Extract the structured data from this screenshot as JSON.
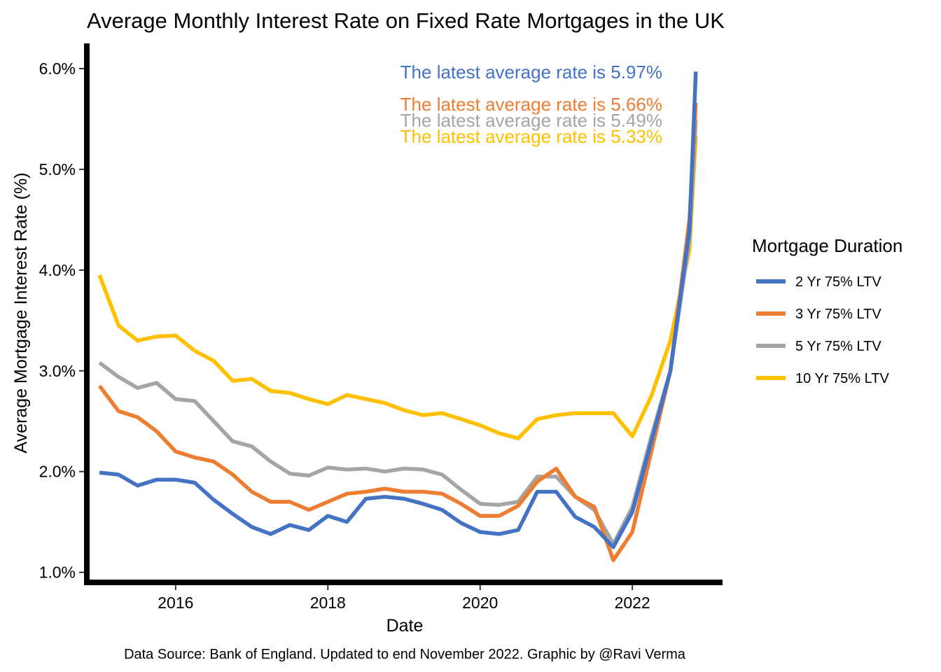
{
  "chart_data": {
    "type": "line",
    "title": "Average Monthly Interest Rate on Fixed Rate Mortgages in the UK",
    "xlabel": "Date",
    "ylabel": "Average Mortgage Interest Rate (%)",
    "caption": "Data Source: Bank of England. Updated to end November 2022. Graphic by @Ravi Verma",
    "xlim": [
      "2014-11",
      "2023-03"
    ],
    "ylim": [
      0.9,
      6.25
    ],
    "x_ticks": [
      {
        "value": "2016-01",
        "label": "2016"
      },
      {
        "value": "2018-01",
        "label": "2018"
      },
      {
        "value": "2020-01",
        "label": "2020"
      },
      {
        "value": "2022-01",
        "label": "2022"
      }
    ],
    "y_ticks": [
      {
        "value": 1.0,
        "label": "1.0%"
      },
      {
        "value": 2.0,
        "label": "2.0%"
      },
      {
        "value": 3.0,
        "label": "3.0%"
      },
      {
        "value": 4.0,
        "label": "4.0%"
      },
      {
        "value": 5.0,
        "label": "5.0%"
      },
      {
        "value": 6.0,
        "label": "6.0%"
      }
    ],
    "grid": false,
    "legend": {
      "title": "Mortgage Duration",
      "position": "right"
    },
    "x": [
      "2015-01",
      "2015-04",
      "2015-07",
      "2015-10",
      "2016-01",
      "2016-04",
      "2016-07",
      "2016-10",
      "2017-01",
      "2017-04",
      "2017-07",
      "2017-10",
      "2018-01",
      "2018-04",
      "2018-07",
      "2018-10",
      "2019-01",
      "2019-04",
      "2019-07",
      "2019-10",
      "2020-01",
      "2020-04",
      "2020-07",
      "2020-10",
      "2021-01",
      "2021-04",
      "2021-07",
      "2021-10",
      "2022-01",
      "2022-04",
      "2022-07",
      "2022-10",
      "2022-11"
    ],
    "series": [
      {
        "name": "2 Yr 75% LTV",
        "color": "#4472C4",
        "values": [
          1.99,
          1.97,
          1.86,
          1.92,
          1.92,
          1.89,
          1.72,
          1.58,
          1.45,
          1.38,
          1.47,
          1.42,
          1.56,
          1.5,
          1.73,
          1.75,
          1.73,
          1.68,
          1.62,
          1.49,
          1.4,
          1.38,
          1.42,
          1.8,
          1.8,
          1.55,
          1.45,
          1.25,
          1.6,
          2.3,
          3.0,
          4.4,
          5.97
        ]
      },
      {
        "name": "3 Yr 75% LTV",
        "color": "#ED7D31",
        "values": [
          2.85,
          2.6,
          2.54,
          2.4,
          2.2,
          2.14,
          2.1,
          1.97,
          1.8,
          1.7,
          1.7,
          1.62,
          1.7,
          1.78,
          1.8,
          1.83,
          1.8,
          1.8,
          1.78,
          1.68,
          1.56,
          1.56,
          1.66,
          1.9,
          2.03,
          1.75,
          1.65,
          1.12,
          1.4,
          2.2,
          3.0,
          4.5,
          5.66
        ]
      },
      {
        "name": "5 Yr 75% LTV",
        "color": "#A5A5A5",
        "values": [
          3.08,
          2.94,
          2.83,
          2.88,
          2.72,
          2.7,
          2.5,
          2.3,
          2.25,
          2.1,
          1.98,
          1.96,
          2.04,
          2.02,
          2.03,
          2.0,
          2.03,
          2.02,
          1.97,
          1.82,
          1.68,
          1.67,
          1.7,
          1.95,
          1.95,
          1.75,
          1.62,
          1.28,
          1.65,
          2.35,
          3.0,
          4.3,
          5.49
        ]
      },
      {
        "name": "10 Yr 75% LTV",
        "color": "#FFC000",
        "values": [
          3.95,
          3.45,
          3.3,
          3.34,
          3.35,
          3.2,
          3.1,
          2.9,
          2.92,
          2.8,
          2.78,
          2.72,
          2.67,
          2.76,
          2.72,
          2.68,
          2.61,
          2.56,
          2.58,
          2.52,
          2.46,
          2.38,
          2.33,
          2.52,
          2.56,
          2.58,
          2.58,
          2.58,
          2.35,
          2.75,
          3.3,
          4.2,
          5.33
        ]
      }
    ],
    "annotations": [
      {
        "text": "The latest average rate is 5.97%",
        "color": "#4472C4"
      },
      {
        "text": "The latest average rate is 5.66%",
        "color": "#ED7D31"
      },
      {
        "text": "The latest average rate is 5.49%",
        "color": "#A5A5A5"
      },
      {
        "text": "The latest average rate is 5.33%",
        "color": "#FFC000"
      }
    ]
  }
}
